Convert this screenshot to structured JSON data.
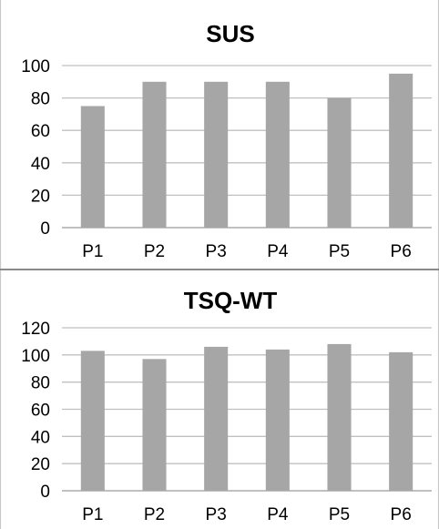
{
  "chart_data": [
    {
      "type": "bar",
      "title": "SUS",
      "xlabel": "",
      "ylabel": "",
      "categories": [
        "P1",
        "P2",
        "P3",
        "P4",
        "P5",
        "P6"
      ],
      "values": [
        75,
        90,
        90,
        90,
        80,
        95
      ],
      "ylim": [
        0,
        100
      ],
      "yticks": [
        0,
        20,
        40,
        60,
        80,
        100
      ],
      "grid": true,
      "legend": "none",
      "bar_color": "#a6a6a6",
      "grid_color": "#c0c0c0"
    },
    {
      "type": "bar",
      "title": "TSQ-WT",
      "xlabel": "",
      "ylabel": "",
      "categories": [
        "P1",
        "P2",
        "P3",
        "P4",
        "P5",
        "P6"
      ],
      "values": [
        103,
        97,
        106,
        104,
        108,
        102
      ],
      "ylim": [
        0,
        120
      ],
      "yticks": [
        0,
        20,
        40,
        60,
        80,
        100,
        120
      ],
      "grid": true,
      "legend": "none",
      "bar_color": "#a6a6a6",
      "grid_color": "#c0c0c0"
    }
  ]
}
